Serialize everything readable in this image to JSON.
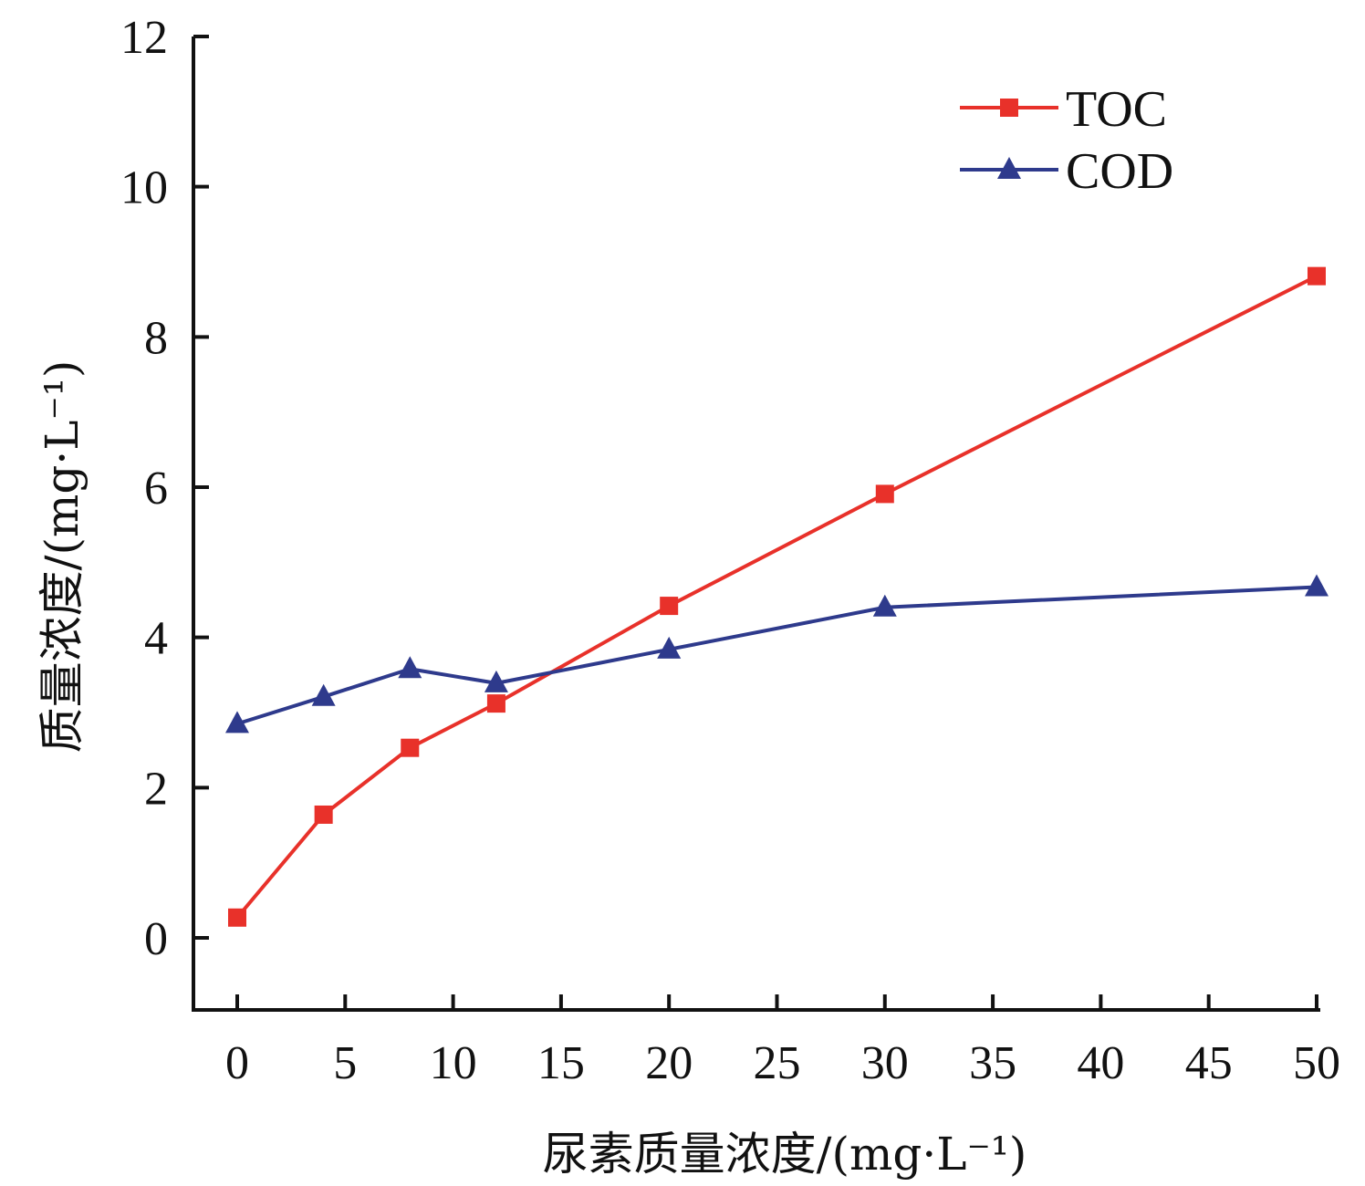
{
  "chart_data": {
    "type": "line",
    "title": "",
    "xlabel": "尿素质量浓度/(mg·L⁻¹)",
    "ylabel": "质量浓度/(mg·L⁻¹)",
    "xlim": [
      -2,
      50
    ],
    "ylim": [
      -1,
      12
    ],
    "xticks": [
      0,
      5,
      10,
      15,
      20,
      25,
      30,
      35,
      40,
      45,
      50
    ],
    "yticks": [
      0,
      2,
      4,
      6,
      8,
      10,
      12
    ],
    "grid": false,
    "legend_position": "top-right",
    "x": [
      0,
      4,
      8,
      12,
      20,
      30,
      50
    ],
    "series": [
      {
        "name": "TOC",
        "color": "#e8312a",
        "marker": "square",
        "values": [
          0.27,
          1.64,
          2.53,
          3.12,
          4.42,
          5.91,
          8.81
        ]
      },
      {
        "name": "COD",
        "color": "#2e3a8c",
        "marker": "triangle",
        "values": [
          2.85,
          3.21,
          3.58,
          3.39,
          3.84,
          4.4,
          4.67
        ]
      }
    ]
  }
}
